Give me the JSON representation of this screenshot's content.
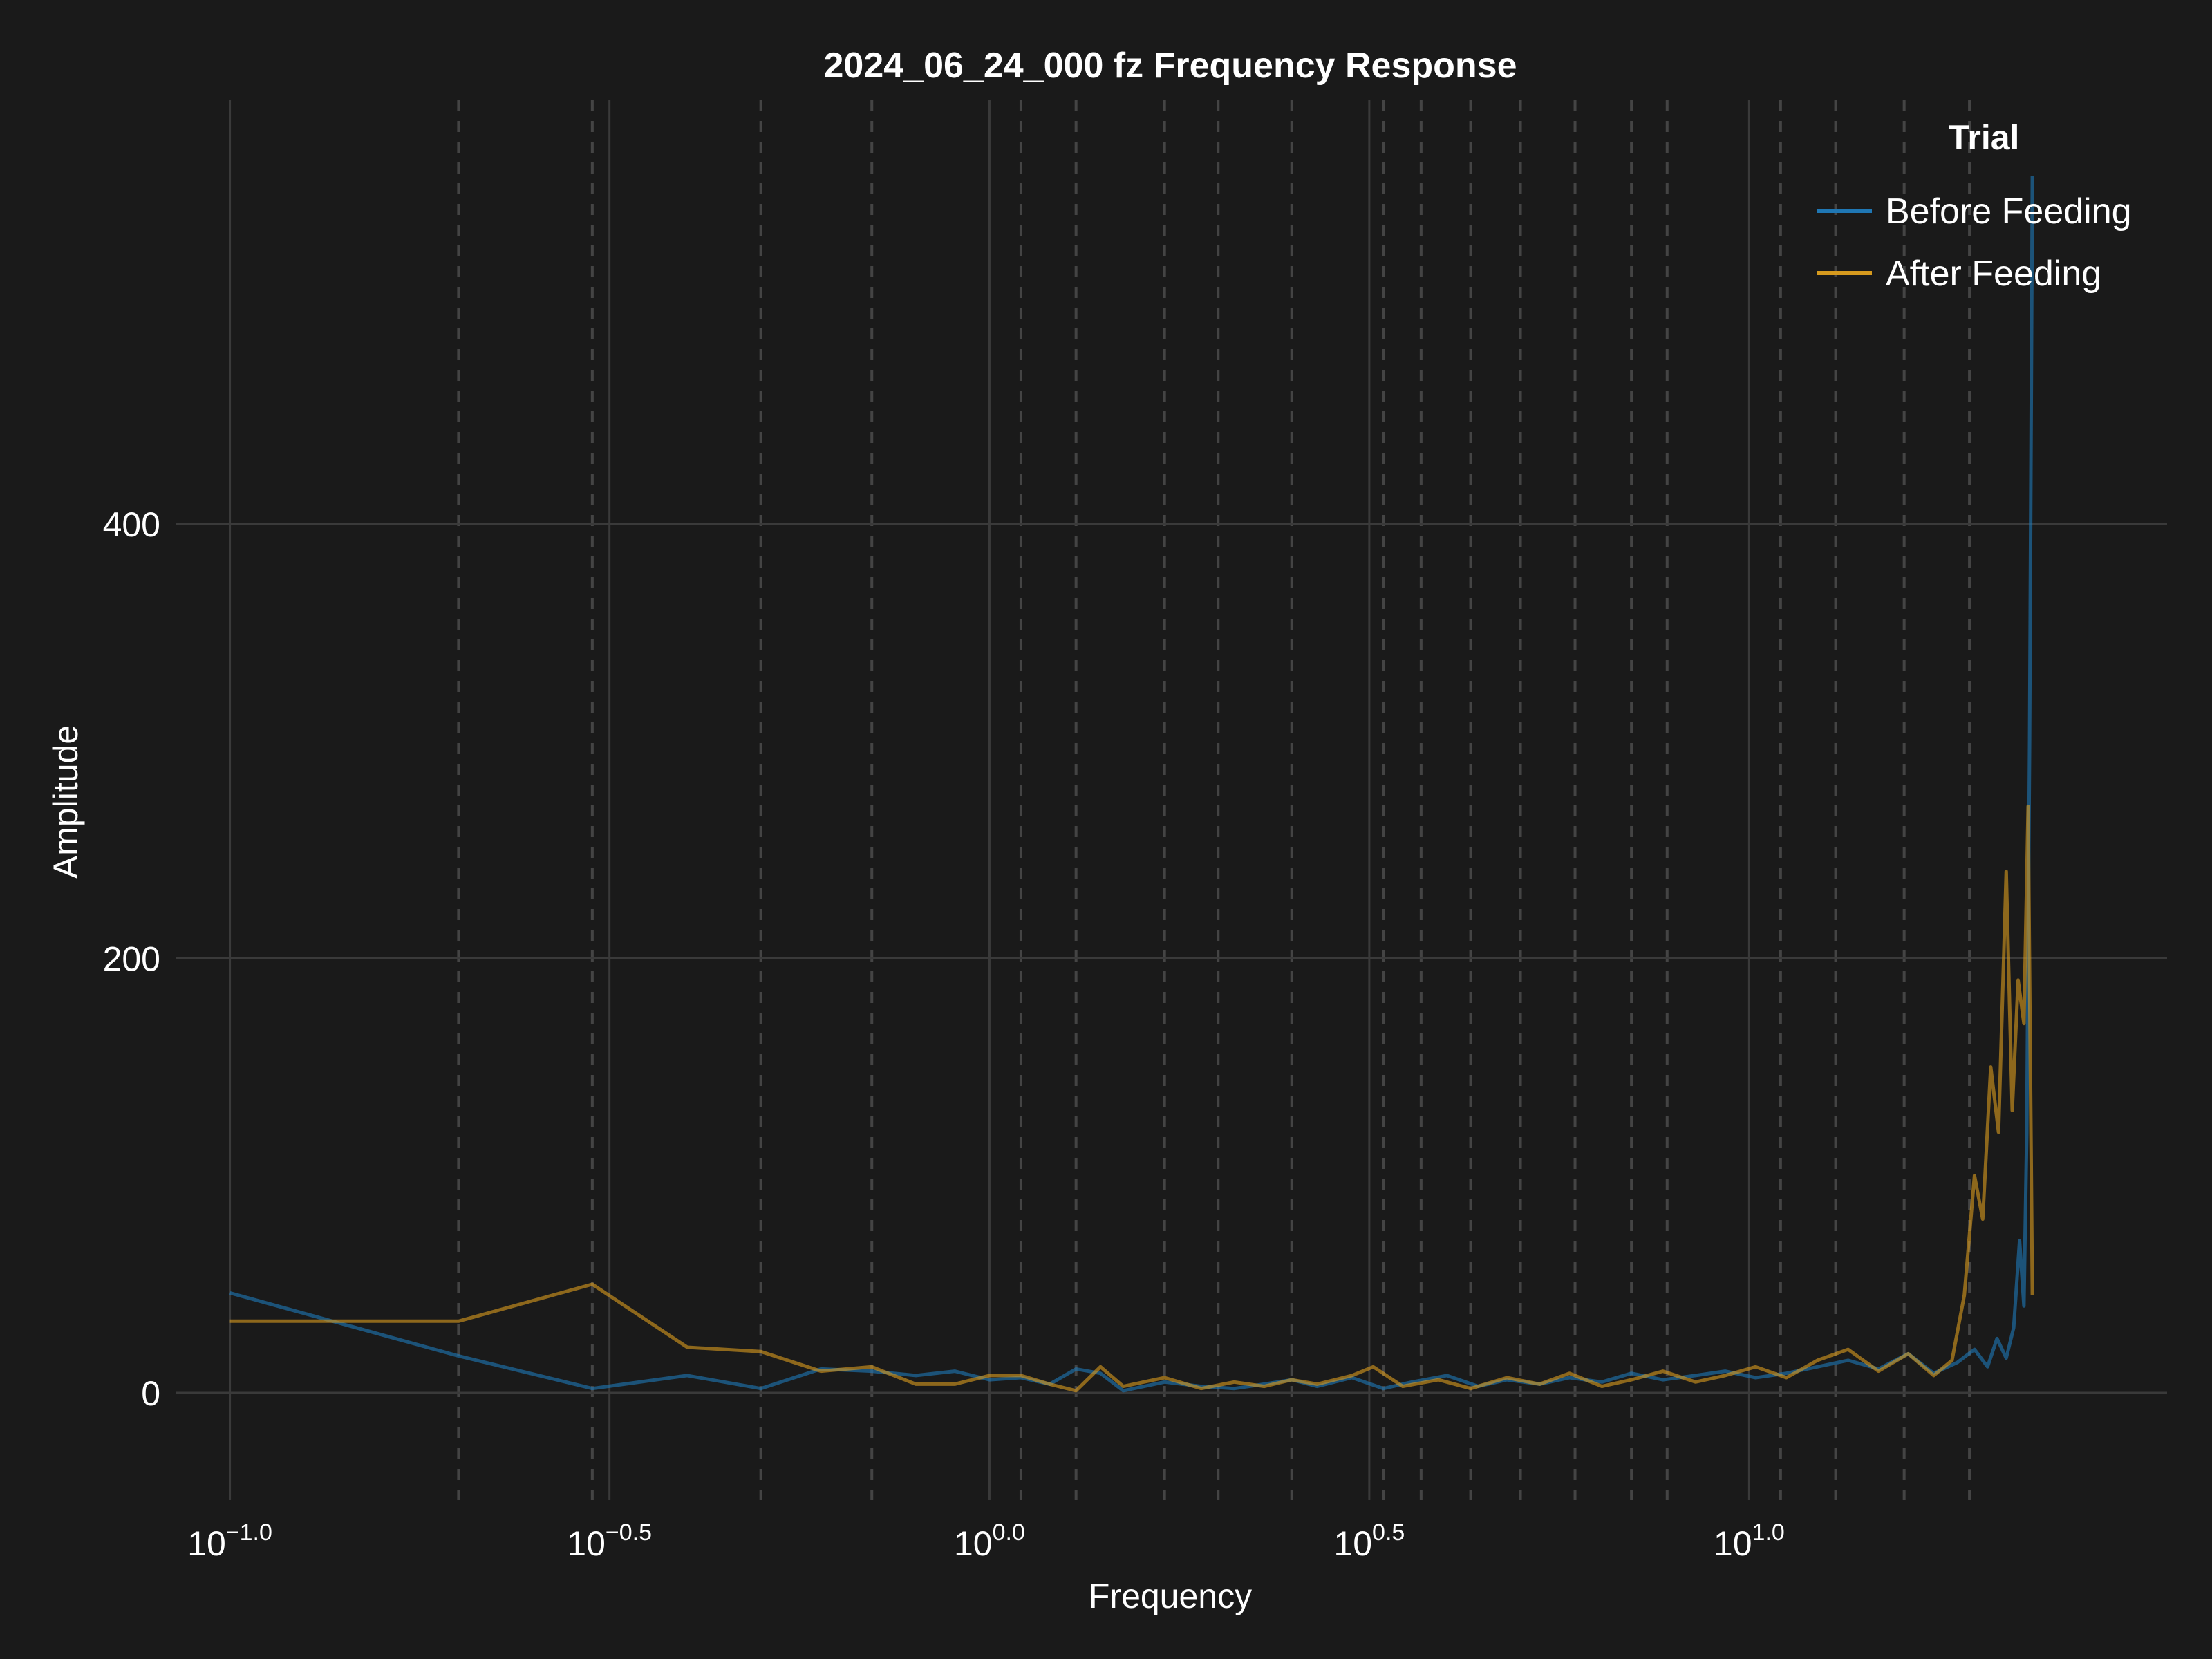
{
  "chart_data": {
    "type": "line",
    "title": "2024_06_24_000 fz Frequency Response",
    "xlabel": "Frequency",
    "ylabel": "Amplitude",
    "x_scale": "log10",
    "xlim": [
      0.085,
      35.5
    ],
    "ylim": [
      -35,
      595
    ],
    "x_ticks": [
      0.1,
      0.316,
      1,
      3.162,
      10
    ],
    "x_tick_labels": [
      {
        "base": "10",
        "exp": "−1.0"
      },
      {
        "base": "10",
        "exp": "−0.5"
      },
      {
        "base": "10",
        "exp": "0.0"
      },
      {
        "base": "10",
        "exp": "0.5"
      },
      {
        "base": "10",
        "exp": "1.0"
      }
    ],
    "y_ticks": [
      0,
      200,
      400
    ],
    "y_tick_labels": [
      "0",
      "200",
      "400"
    ],
    "minor_x_dashed": [
      0.2,
      0.3,
      0.5,
      0.7,
      1.1,
      1.3,
      1.7,
      2.0,
      2.5,
      3.3,
      3.7,
      4.3,
      5.0,
      5.9,
      7.0,
      7.8,
      11.0,
      13.0,
      16.0,
      19.5
    ],
    "grid": true,
    "legend": {
      "title": "Trial",
      "position": "top-right"
    },
    "colors": {
      "background": "#1a1a1a",
      "grid": "#3a3a3a",
      "text": "#ffffff"
    },
    "series": [
      {
        "name": "Before Feeding",
        "color": "#1f77b4",
        "x": [
          0.1,
          0.2,
          0.3,
          0.4,
          0.5,
          0.6,
          0.7,
          0.8,
          0.9,
          1.0,
          1.1,
          1.2,
          1.3,
          1.4,
          1.5,
          1.7,
          1.9,
          2.1,
          2.3,
          2.5,
          2.7,
          3.0,
          3.3,
          3.6,
          4.0,
          4.4,
          4.8,
          5.3,
          5.8,
          6.4,
          7.0,
          7.7,
          8.5,
          9.3,
          10.2,
          11.2,
          12.3,
          13.5,
          14.8,
          16.2,
          17.5,
          18.8,
          19.8,
          20.6,
          21.2,
          21.8,
          22.3,
          22.7,
          23.0,
          23.2,
          23.4,
          23.6
        ],
        "values": [
          46,
          17,
          2,
          8,
          2,
          11,
          10,
          8,
          10,
          6,
          7,
          4,
          11,
          9,
          1,
          5,
          3,
          2,
          4,
          6,
          3,
          7,
          2,
          5,
          8,
          3,
          6,
          4,
          7,
          5,
          9,
          6,
          8,
          10,
          7,
          9,
          12,
          15,
          11,
          18,
          9,
          14,
          20,
          12,
          25,
          16,
          30,
          70,
          40,
          120,
          300,
          560
        ]
      },
      {
        "name": "After Feeding",
        "color": "#d69a1e",
        "x": [
          0.1,
          0.2,
          0.3,
          0.4,
          0.5,
          0.6,
          0.7,
          0.8,
          0.9,
          1.0,
          1.1,
          1.2,
          1.3,
          1.4,
          1.5,
          1.7,
          1.9,
          2.1,
          2.3,
          2.5,
          2.7,
          3.0,
          3.2,
          3.5,
          3.9,
          4.3,
          4.8,
          5.3,
          5.8,
          6.4,
          7.0,
          7.7,
          8.5,
          9.3,
          10.2,
          11.2,
          12.3,
          13.5,
          14.8,
          16.2,
          17.5,
          18.5,
          19.2,
          19.8,
          20.3,
          20.8,
          21.3,
          21.8,
          22.2,
          22.6,
          23.0,
          23.3,
          23.6
        ],
        "values": [
          33,
          33,
          50,
          21,
          19,
          10,
          12,
          4,
          4,
          8,
          8,
          4,
          1,
          12,
          3,
          7,
          2,
          5,
          3,
          6,
          4,
          8,
          12,
          3,
          6,
          2,
          7,
          4,
          9,
          3,
          6,
          10,
          5,
          8,
          12,
          7,
          15,
          20,
          10,
          18,
          8,
          15,
          45,
          100,
          80,
          150,
          120,
          240,
          130,
          190,
          170,
          270,
          45
        ]
      }
    ]
  }
}
